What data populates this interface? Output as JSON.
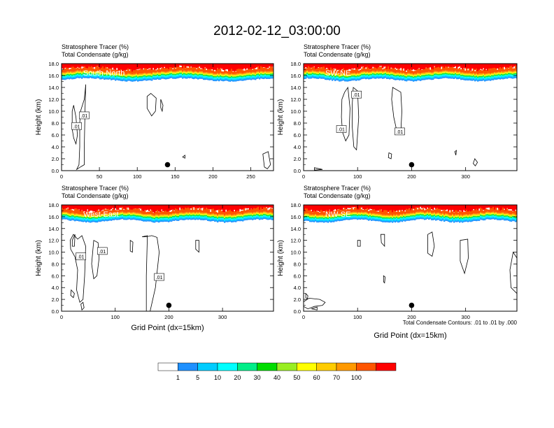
{
  "figure": {
    "title": "2012-02-12_03:00:00",
    "footnote": "Total Condensate Contours: .01 to .01 by .000"
  },
  "chart_data": [
    {
      "type": "heatmap",
      "panel_label": "South-North",
      "header_lines": [
        "Stratosphere Tracer   (%)",
        "Total Condensate   (g/kg)"
      ],
      "xlabel": "",
      "ylabel": "Height (km)",
      "xlim": [
        0,
        280
      ],
      "ylim": [
        0,
        18
      ],
      "xticks": [
        0,
        50,
        100,
        150,
        200,
        250
      ],
      "yticks": [
        "0.0",
        "2.0",
        "4.0",
        "6.0",
        "8.0",
        "10.0",
        "12.0",
        "14.0",
        "16.0",
        "18.0"
      ],
      "marker": {
        "x": 140,
        "y": 1.0
      },
      "contour_labels": [
        {
          "text": ".01",
          "x": 30,
          "y": 9.3
        },
        {
          "text": ".01",
          "x": 20,
          "y": 7.5
        }
      ]
    },
    {
      "type": "heatmap",
      "panel_label": "SW-NE",
      "header_lines": [
        "Stratosphere Tracer   (%)",
        "Total Condensate   (g/kg)"
      ],
      "xlabel": "",
      "ylabel": "Height (km)",
      "xlim": [
        0,
        395
      ],
      "ylim": [
        0,
        18
      ],
      "xticks": [
        0,
        100,
        200,
        300
      ],
      "yticks": [
        "0.0",
        "2.0",
        "4.0",
        "6.0",
        "8.0",
        "10.0",
        "12.0",
        "14.0",
        "16.0",
        "18.0"
      ],
      "marker": {
        "x": 200,
        "y": 1.0
      },
      "contour_labels": [
        {
          "text": ".01",
          "x": 98,
          "y": 12.8
        },
        {
          "text": ".01",
          "x": 70,
          "y": 7.0
        },
        {
          "text": ".01",
          "x": 178,
          "y": 6.6
        }
      ]
    },
    {
      "type": "heatmap",
      "panel_label": "West-East",
      "header_lines": [
        "Stratosphere Tracer   (%)",
        "Total Condensate   (g/kg)"
      ],
      "xlabel": "Grid Point (dx=15km)",
      "ylabel": "Height (km)",
      "xlim": [
        0,
        395
      ],
      "ylim": [
        0,
        18
      ],
      "xticks": [
        0,
        100,
        200,
        300
      ],
      "yticks": [
        "0.0",
        "2.0",
        "4.0",
        "6.0",
        "8.0",
        "10.0",
        "12.0",
        "14.0",
        "16.0",
        "18.0"
      ],
      "marker": {
        "x": 200,
        "y": 1.0
      },
      "contour_labels": [
        {
          "text": ".01",
          "x": 76,
          "y": 10.2
        },
        {
          "text": ".01",
          "x": 36,
          "y": 9.3
        },
        {
          "text": ".01",
          "x": 182,
          "y": 5.8
        }
      ]
    },
    {
      "type": "heatmap",
      "panel_label": "NW-SE",
      "header_lines": [
        "Stratosphere Tracer   (%)",
        "Total Condensate   (g/kg)"
      ],
      "xlabel": "Grid Point (dx=15km)",
      "ylabel": "Height (km)",
      "xlim": [
        0,
        395
      ],
      "ylim": [
        0,
        18
      ],
      "xticks": [
        0,
        100,
        200,
        300
      ],
      "yticks": [
        "0.0",
        "2.0",
        "4.0",
        "6.0",
        "8.0",
        "10.0",
        "12.0",
        "14.0",
        "16.0",
        "18.0"
      ],
      "marker": {
        "x": 200,
        "y": 1.0
      },
      "contour_labels": []
    }
  ],
  "colorbar": {
    "labels": [
      "1",
      "5",
      "10",
      "20",
      "30",
      "40",
      "50",
      "60",
      "70",
      "100"
    ],
    "colors": [
      "#ffffff",
      "#1e90ff",
      "#00ccff",
      "#00ffff",
      "#00ee88",
      "#00dd00",
      "#99ee22",
      "#ffff00",
      "#ffcc00",
      "#ff9900",
      "#ff5500",
      "#ff0000"
    ]
  }
}
